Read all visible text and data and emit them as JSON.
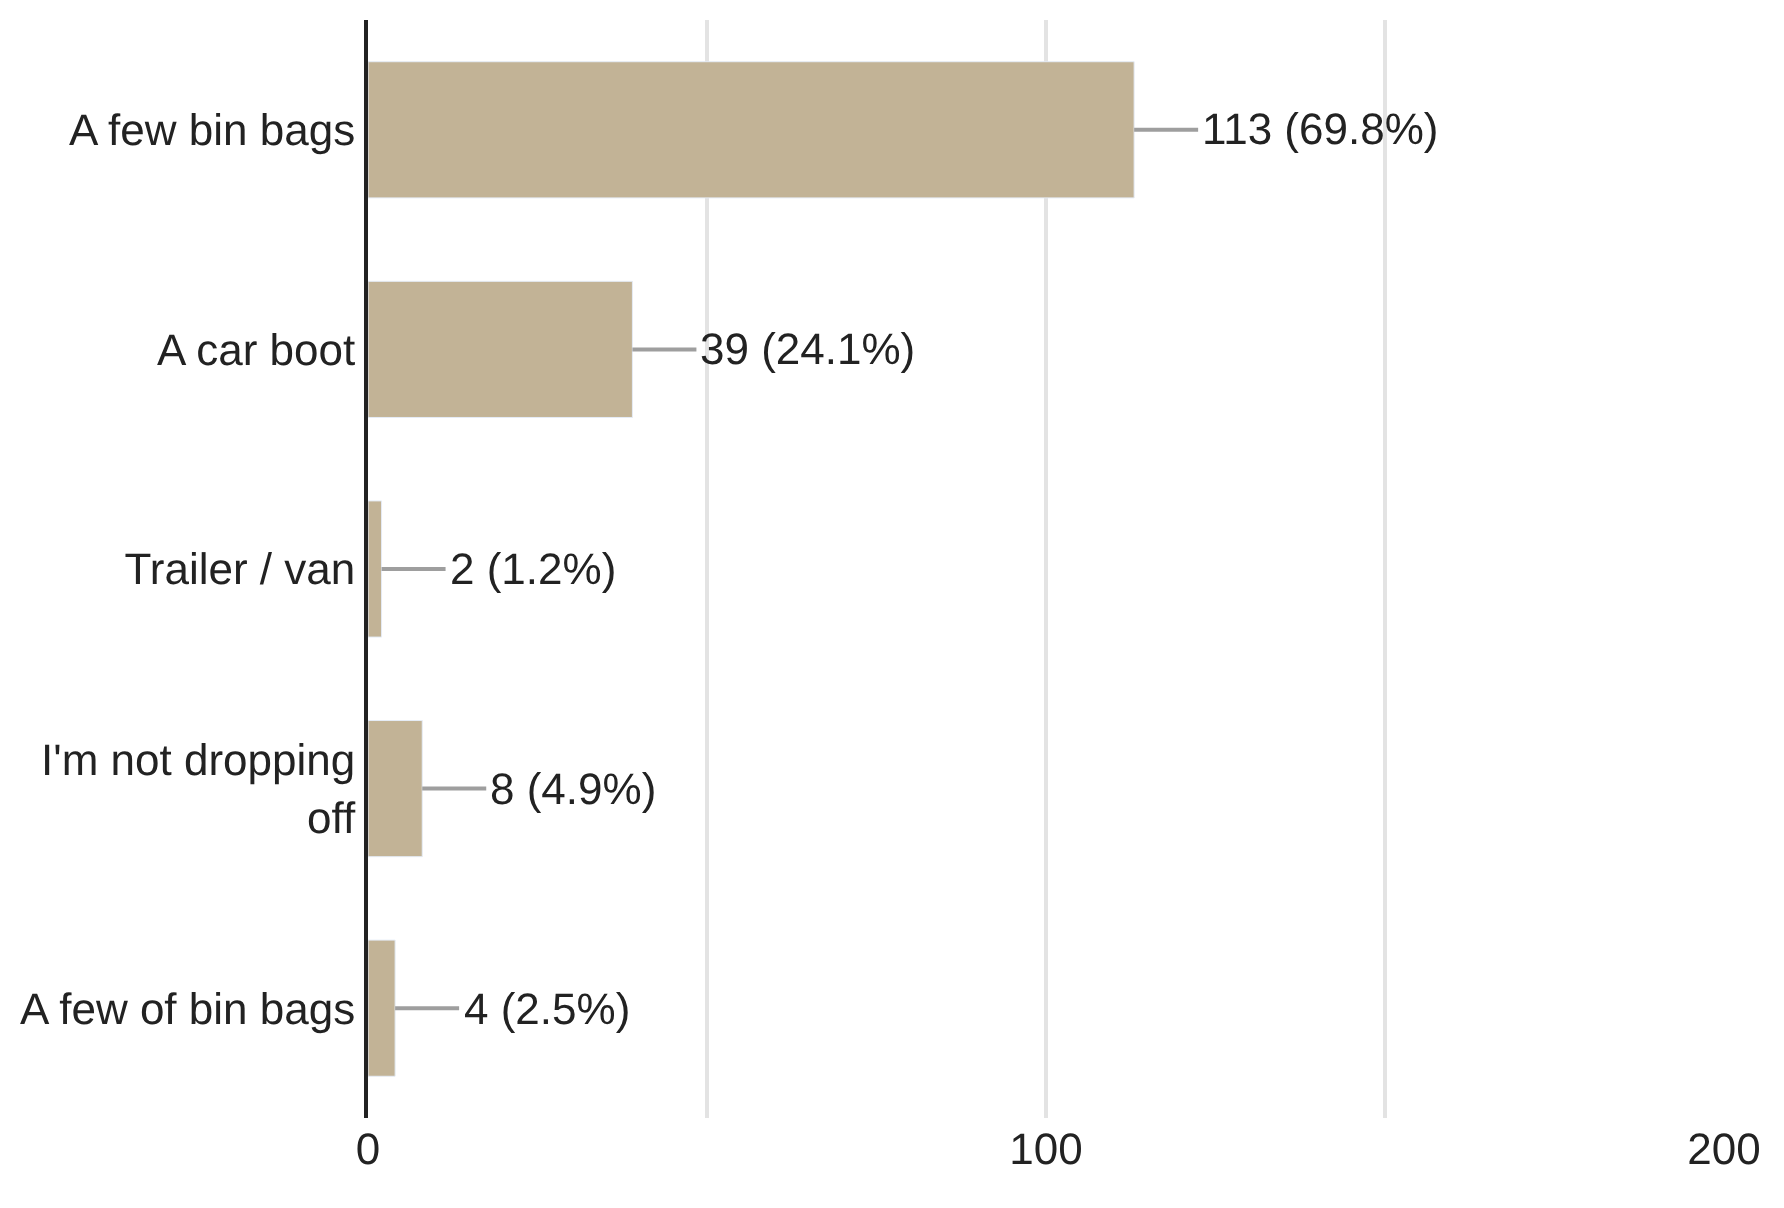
{
  "chart_data": {
    "type": "bar",
    "orientation": "horizontal",
    "categories": [
      "A few bin bags",
      "A car boot",
      "Trailer / van",
      "I'm not dropping off",
      "A few of bin bags"
    ],
    "values": [
      113,
      39,
      2,
      8,
      4
    ],
    "value_labels": [
      "113 (69.8%)",
      "39 (24.1%)",
      "2 (1.2%)",
      "8 (4.9%)",
      "4 (2.5%)"
    ],
    "color": "#c2b396",
    "xlim": [
      0,
      200
    ],
    "xticks": [
      0,
      {
        "value": 50,
        "label": null
      },
      100,
      {
        "value": 150,
        "label": null
      },
      200
    ],
    "grid": "x",
    "legend": false
  }
}
